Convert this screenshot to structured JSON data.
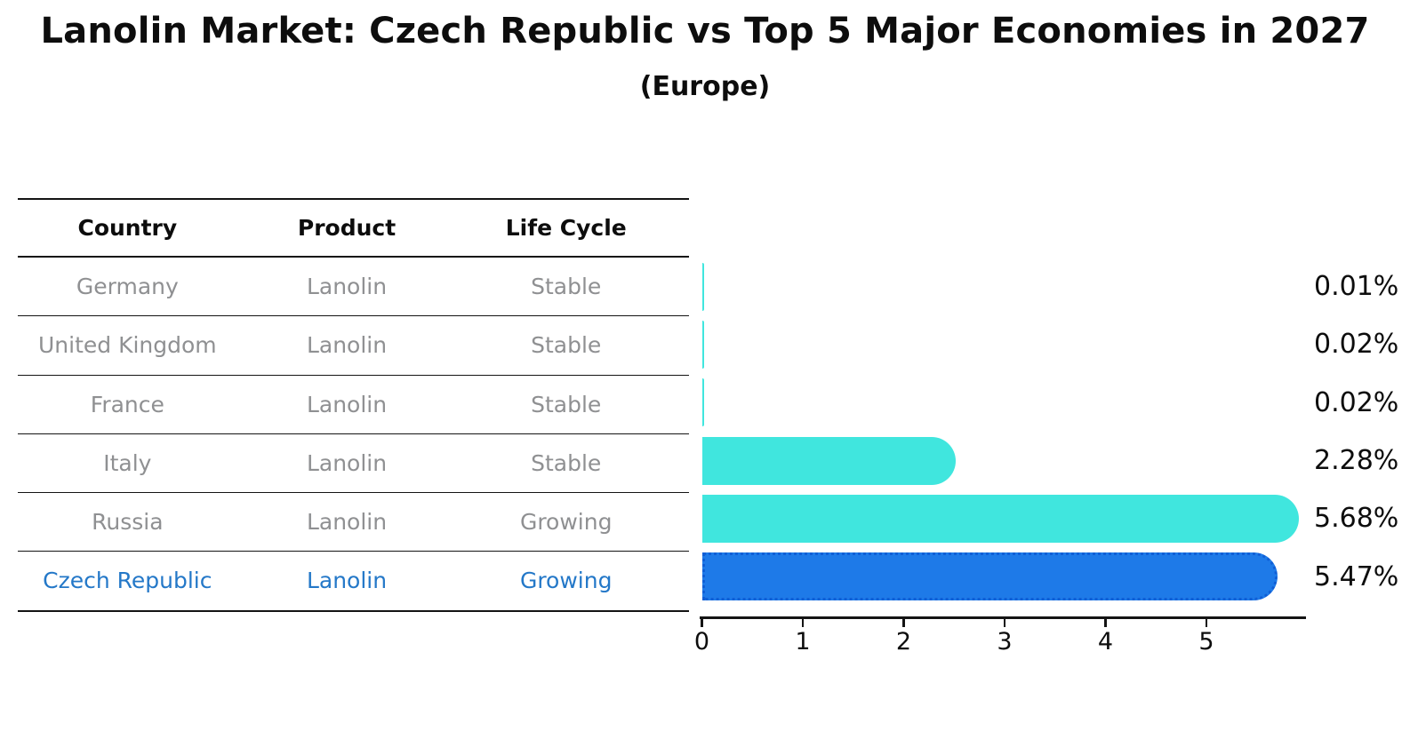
{
  "title": "Lanolin Market: Czech Republic vs Top 5 Major Economies in 2027",
  "subtitle": "(Europe)",
  "table": {
    "headers": [
      "Country",
      "Product",
      "Life Cycle"
    ],
    "rows": [
      {
        "country": "Germany",
        "product": "Lanolin",
        "life_cycle": "Stable",
        "highlight": false
      },
      {
        "country": "United Kingdom",
        "product": "Lanolin",
        "life_cycle": "Stable",
        "highlight": false
      },
      {
        "country": "France",
        "product": "Lanolin",
        "life_cycle": "Stable",
        "highlight": false
      },
      {
        "country": "Italy",
        "product": "Lanolin",
        "life_cycle": "Stable",
        "highlight": false
      },
      {
        "country": "Russia",
        "product": "Lanolin",
        "life_cycle": "Growing",
        "highlight": false
      },
      {
        "country": "Czech Republic",
        "product": "Lanolin",
        "life_cycle": "Growing",
        "highlight": true
      }
    ]
  },
  "chart_data": {
    "type": "bar",
    "orientation": "horizontal",
    "title": "Lanolin Market: Czech Republic vs Top 5 Major Economies in 2027",
    "subtitle": "(Europe)",
    "categories": [
      "Germany",
      "United Kingdom",
      "France",
      "Italy",
      "Russia",
      "Czech Republic"
    ],
    "values": [
      0.01,
      0.02,
      0.02,
      2.28,
      5.68,
      5.47
    ],
    "value_labels": [
      "0.01%",
      "0.02%",
      "0.02%",
      "2.28%",
      "5.68%",
      "5.47%"
    ],
    "x_ticks": [
      0,
      1,
      2,
      3,
      4,
      5
    ],
    "xlim": [
      0,
      5.96
    ],
    "grid": false,
    "legend": false,
    "bar_color": "#40e6de",
    "highlight_bar_color": "#1e7ae8",
    "highlight_index": 5
  },
  "colors": {
    "row_text_gray": "#8f9092",
    "highlight_text_blue": "#2478c8",
    "line_black": "#141414"
  }
}
